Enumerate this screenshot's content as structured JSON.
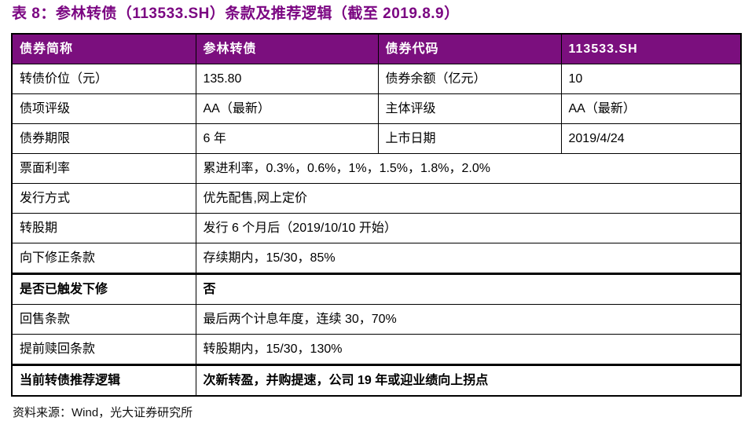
{
  "title": "表 8：参林转债（113533.SH）条款及推荐逻辑（截至 2019.8.9）",
  "colors": {
    "title": "#7B0682",
    "header_bg": "#7B0F7E",
    "header_text": "#FFFFFF",
    "border": "#000000"
  },
  "table": {
    "header": {
      "c1": "债券简称",
      "c2": "参林转债",
      "c3": "债券代码",
      "c4": "113533.SH"
    },
    "rows4": [
      {
        "c1": "转债价位（元）",
        "c2": "135.80",
        "c3": "债券余额（亿元）",
        "c4": "10"
      },
      {
        "c1": "债项评级",
        "c2": "AA（最新）",
        "c3": "主体评级",
        "c4": "AA（最新）"
      },
      {
        "c1": "债券期限",
        "c2": "6 年",
        "c3": "上市日期",
        "c4": "2019/4/24"
      }
    ],
    "rows2": [
      {
        "label": "票面利率",
        "value": "累进利率，0.3%，0.6%，1%，1.5%，1.8%，2.0%"
      },
      {
        "label": "发行方式",
        "value": "优先配售,网上定价"
      },
      {
        "label": "转股期",
        "value": "发行 6 个月后（2019/10/10 开始）"
      },
      {
        "label": "向下修正条款",
        "value": "存续期内，15/30，85%"
      },
      {
        "label": "是否已触发下修",
        "value": "否"
      },
      {
        "label": "回售条款",
        "value": "最后两个计息年度，连续 30，70%"
      },
      {
        "label": "提前赎回条款",
        "value": "转股期内，15/30，130%"
      },
      {
        "label": "当前转债推荐逻辑",
        "value": "次新转盈，并购提速，公司 19 年或迎业绩向上拐点"
      }
    ]
  },
  "source": "资料来源：Wind，光大证券研究所"
}
